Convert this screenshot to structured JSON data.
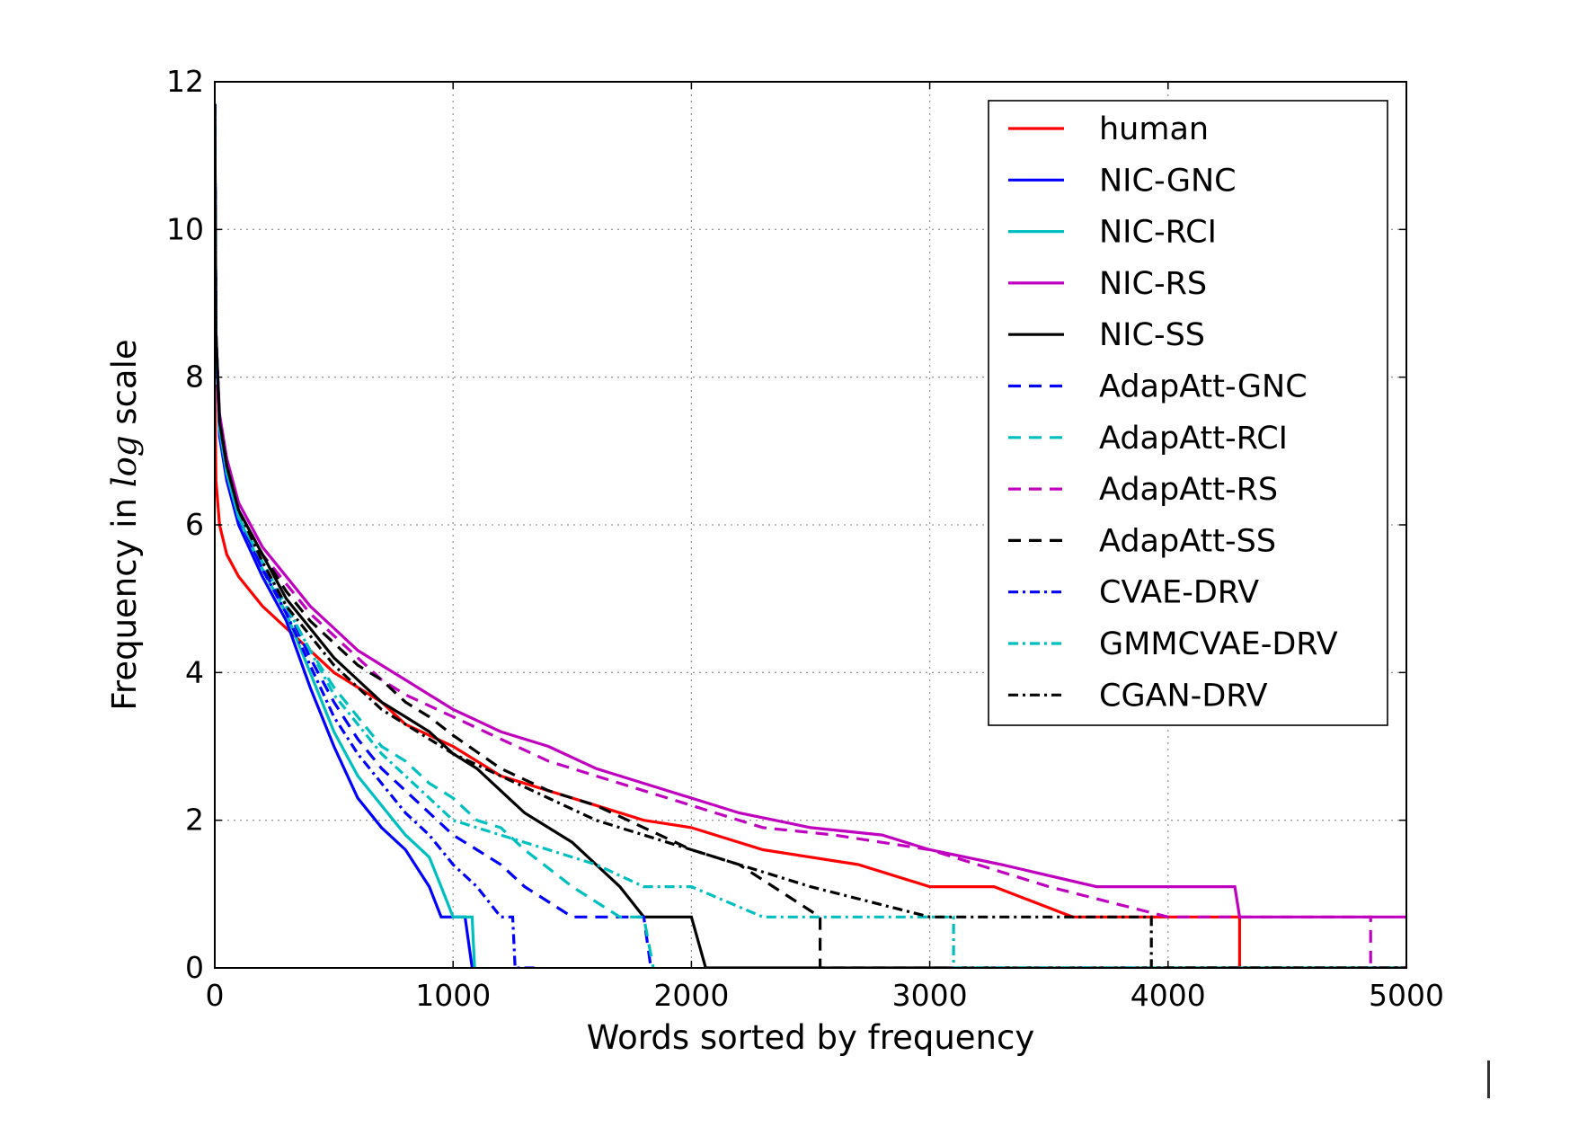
{
  "chart_data": {
    "type": "line",
    "xlabel": "Words sorted by frequency",
    "ylabel_parts": [
      "Frequency in ",
      "log",
      " scale"
    ],
    "xlim": [
      0,
      5000
    ],
    "ylim": [
      0,
      12
    ],
    "xticks": [
      0,
      1000,
      2000,
      3000,
      4000,
      5000
    ],
    "yticks": [
      0,
      2,
      4,
      6,
      8,
      10,
      12
    ],
    "grid": true,
    "legend_position": "top-right",
    "series": [
      {
        "name": "human",
        "color": "#ff0000",
        "style": "solid",
        "x": [
          0,
          5,
          20,
          50,
          100,
          150,
          200,
          300,
          400,
          500,
          600,
          700,
          800,
          900,
          1000,
          1100,
          1200,
          1400,
          1600,
          1800,
          2000,
          2300,
          2700,
          3000,
          3270,
          3600,
          4000,
          4300,
          4300
        ],
        "y": [
          7.9,
          6.6,
          6.0,
          5.6,
          5.3,
          5.1,
          4.9,
          4.6,
          4.3,
          4.0,
          3.8,
          3.6,
          3.3,
          3.15,
          3.0,
          2.8,
          2.6,
          2.4,
          2.2,
          2.0,
          1.9,
          1.6,
          1.4,
          1.1,
          1.1,
          0.69,
          0.69,
          0.69,
          0.0
        ]
      },
      {
        "name": "NIC-GNC",
        "color": "#0000ff",
        "style": "solid",
        "x": [
          0,
          5,
          20,
          50,
          100,
          200,
          300,
          400,
          500,
          600,
          700,
          800,
          900,
          950,
          1000,
          1050,
          1080
        ],
        "y": [
          11.7,
          8.5,
          7.2,
          6.6,
          6.0,
          5.3,
          4.7,
          3.8,
          3.0,
          2.3,
          1.9,
          1.6,
          1.1,
          0.69,
          0.69,
          0.69,
          0.0
        ]
      },
      {
        "name": "NIC-RCI",
        "color": "#00bfbf",
        "style": "solid",
        "x": [
          0,
          5,
          20,
          50,
          100,
          200,
          300,
          400,
          500,
          600,
          700,
          800,
          900,
          950,
          1000,
          1050,
          1080,
          1090
        ],
        "y": [
          11.7,
          8.6,
          7.3,
          6.7,
          6.1,
          5.4,
          4.8,
          4.0,
          3.2,
          2.6,
          2.2,
          1.8,
          1.5,
          1.1,
          0.69,
          0.69,
          0.69,
          0.0
        ]
      },
      {
        "name": "NIC-RS",
        "color": "#bf00bf",
        "style": "solid",
        "x": [
          0,
          5,
          20,
          50,
          100,
          200,
          300,
          400,
          500,
          600,
          700,
          800,
          900,
          1000,
          1100,
          1200,
          1400,
          1600,
          1800,
          2000,
          2200,
          2500,
          2800,
          3000,
          3300,
          3700,
          4000,
          4280,
          4300,
          5000
        ],
        "y": [
          11.7,
          8.6,
          7.5,
          6.9,
          6.3,
          5.7,
          5.3,
          4.9,
          4.6,
          4.3,
          4.1,
          3.9,
          3.7,
          3.5,
          3.35,
          3.2,
          3.0,
          2.7,
          2.5,
          2.3,
          2.1,
          1.9,
          1.8,
          1.6,
          1.4,
          1.1,
          1.1,
          1.1,
          0.69,
          0.69
        ]
      },
      {
        "name": "NIC-SS",
        "color": "#000000",
        "style": "solid",
        "x": [
          0,
          5,
          20,
          50,
          100,
          200,
          300,
          400,
          500,
          600,
          700,
          800,
          900,
          1000,
          1100,
          1200,
          1300,
          1400,
          1500,
          1600,
          1700,
          1800,
          2000,
          2060,
          2100,
          5000
        ],
        "y": [
          11.7,
          8.6,
          7.4,
          6.8,
          6.2,
          5.6,
          5.0,
          4.6,
          4.2,
          3.9,
          3.6,
          3.4,
          3.2,
          2.9,
          2.7,
          2.4,
          2.1,
          1.9,
          1.7,
          1.4,
          1.1,
          0.69,
          0.69,
          0.0,
          0.0,
          0.0
        ]
      },
      {
        "name": "AdapAtt-GNC",
        "color": "#0000ff",
        "style": "dash",
        "x": [
          0,
          5,
          20,
          50,
          100,
          200,
          300,
          400,
          500,
          600,
          700,
          800,
          900,
          1000,
          1100,
          1200,
          1300,
          1500,
          1600,
          1800,
          1830
        ],
        "y": [
          11.7,
          8.5,
          7.3,
          6.7,
          6.1,
          5.4,
          4.9,
          4.2,
          3.6,
          3.1,
          2.7,
          2.4,
          2.1,
          1.8,
          1.6,
          1.4,
          1.1,
          0.69,
          0.69,
          0.69,
          0.0
        ]
      },
      {
        "name": "AdapAtt-RCI",
        "color": "#00bfbf",
        "style": "dash",
        "x": [
          0,
          5,
          20,
          50,
          100,
          200,
          300,
          400,
          500,
          600,
          700,
          800,
          900,
          1000,
          1100,
          1200,
          1300,
          1500,
          1700,
          1800,
          1840
        ],
        "y": [
          11.7,
          8.6,
          7.3,
          6.7,
          6.1,
          5.5,
          4.9,
          4.3,
          3.8,
          3.4,
          3.0,
          2.8,
          2.5,
          2.3,
          2.0,
          1.9,
          1.6,
          1.1,
          0.69,
          0.69,
          0.0
        ]
      },
      {
        "name": "AdapAtt-RS",
        "color": "#bf00bf",
        "style": "dash",
        "x": [
          0,
          5,
          20,
          50,
          100,
          200,
          300,
          400,
          500,
          600,
          700,
          800,
          900,
          1000,
          1200,
          1400,
          1600,
          1800,
          2000,
          2300,
          2600,
          3000,
          3500,
          4000,
          4500,
          4850,
          4850,
          5000
        ],
        "y": [
          11.7,
          8.6,
          7.4,
          6.8,
          6.2,
          5.6,
          5.2,
          4.8,
          4.5,
          4.2,
          3.9,
          3.7,
          3.55,
          3.4,
          3.1,
          2.8,
          2.6,
          2.4,
          2.2,
          1.9,
          1.8,
          1.6,
          1.1,
          0.69,
          0.69,
          0.69,
          0.0,
          0.0
        ]
      },
      {
        "name": "AdapAtt-SS",
        "color": "#000000",
        "style": "dash",
        "x": [
          0,
          5,
          20,
          50,
          100,
          200,
          300,
          400,
          500,
          600,
          700,
          800,
          900,
          1000,
          1200,
          1400,
          1600,
          1800,
          2000,
          2200,
          2540,
          2540,
          5000
        ],
        "y": [
          11.7,
          8.6,
          7.4,
          6.8,
          6.2,
          5.6,
          5.1,
          4.7,
          4.4,
          4.1,
          3.9,
          3.6,
          3.4,
          3.15,
          2.7,
          2.4,
          2.2,
          1.9,
          1.6,
          1.4,
          0.69,
          0.0,
          0.0
        ]
      },
      {
        "name": "CVAE-DRV",
        "color": "#0000ff",
        "style": "dashdot",
        "x": [
          0,
          5,
          20,
          50,
          100,
          200,
          300,
          400,
          500,
          600,
          700,
          800,
          900,
          1000,
          1100,
          1200,
          1250,
          1260,
          1350
        ],
        "y": [
          11.7,
          8.5,
          7.3,
          6.7,
          6.1,
          5.4,
          4.8,
          4.1,
          3.4,
          2.9,
          2.5,
          2.1,
          1.8,
          1.4,
          1.1,
          0.69,
          0.69,
          0.0,
          0.0
        ]
      },
      {
        "name": "GMMCVAE-DRV",
        "color": "#00bfbf",
        "style": "dashdot",
        "x": [
          0,
          5,
          20,
          50,
          100,
          200,
          300,
          400,
          500,
          600,
          700,
          800,
          900,
          1000,
          1200,
          1400,
          1600,
          1800,
          2000,
          2300,
          2500,
          3000,
          3100,
          3100,
          5000
        ],
        "y": [
          11.7,
          8.6,
          7.3,
          6.7,
          6.1,
          5.5,
          4.9,
          4.3,
          3.7,
          3.3,
          2.9,
          2.6,
          2.3,
          2.0,
          1.8,
          1.6,
          1.4,
          1.1,
          1.1,
          0.69,
          0.69,
          0.69,
          0.69,
          0.0,
          0.0
        ]
      },
      {
        "name": "CGAN-DRV",
        "color": "#000000",
        "style": "dashdot",
        "x": [
          0,
          5,
          20,
          50,
          100,
          200,
          300,
          400,
          500,
          600,
          700,
          800,
          900,
          1000,
          1200,
          1400,
          1600,
          1800,
          2000,
          2200,
          2500,
          3000,
          3500,
          3930,
          3930,
          5000
        ],
        "y": [
          11.7,
          8.6,
          7.4,
          6.8,
          6.2,
          5.5,
          4.9,
          4.5,
          4.1,
          3.8,
          3.5,
          3.3,
          3.1,
          2.9,
          2.6,
          2.3,
          2.0,
          1.8,
          1.6,
          1.4,
          1.1,
          0.69,
          0.69,
          0.69,
          0.0,
          0.0
        ]
      }
    ]
  }
}
